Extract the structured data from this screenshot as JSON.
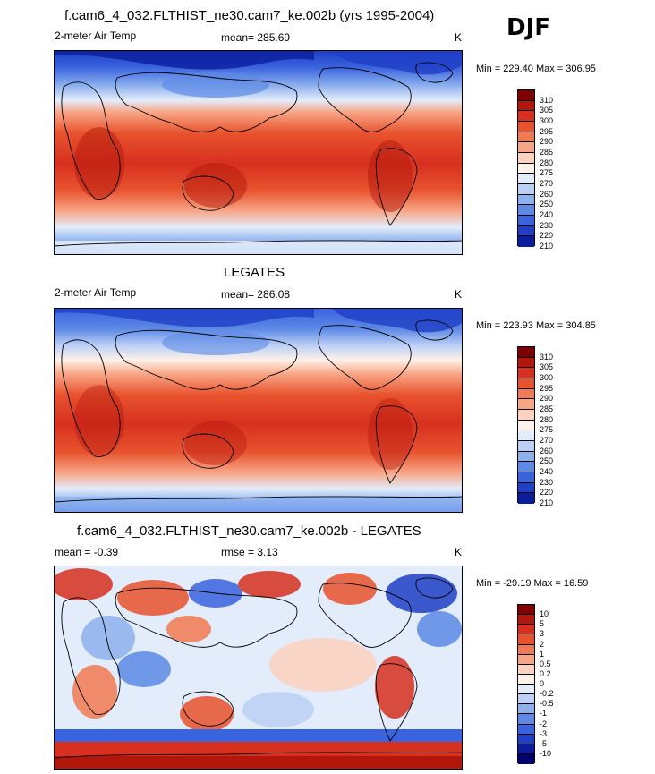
{
  "season": "DJF",
  "panels": [
    {
      "title": "f.cam6_4_032.FLTHIST_ne30.cam7_ke.002b (yrs 1995-2004)",
      "variable": "2-meter Air Temp",
      "stat": "mean= 285.69",
      "units": "K",
      "minmax": "Min = 229.40 Max = 306.95",
      "levels": [
        "310",
        "305",
        "300",
        "295",
        "290",
        "285",
        "280",
        "275",
        "270",
        "260",
        "250",
        "240",
        "230",
        "220",
        "210"
      ]
    },
    {
      "title": "LEGATES",
      "variable": "2-meter Air Temp",
      "stat": "mean= 286.08",
      "units": "K",
      "minmax": "Min = 223.93 Max = 304.85",
      "levels": [
        "310",
        "305",
        "300",
        "295",
        "290",
        "285",
        "280",
        "275",
        "270",
        "260",
        "250",
        "240",
        "230",
        "220",
        "210"
      ]
    },
    {
      "title": "f.cam6_4_032.FLTHIST_ne30.cam7_ke.002b - LEGATES",
      "variable": "mean =  -0.39",
      "stat": "rmse =   3.13",
      "units": "K",
      "minmax": "Min = -29.19 Max =  16.59",
      "levels": [
        "10",
        "5",
        "3",
        "2",
        "1",
        "0.5",
        "0.2",
        "0",
        "-0.2",
        "-0.5",
        "-1",
        "-2",
        "-3",
        "-5",
        "-10"
      ]
    }
  ],
  "palette": [
    "#7f0000",
    "#b3170c",
    "#d7301f",
    "#e8532e",
    "#f27a52",
    "#f8a585",
    "#fcd2bf",
    "#fdf2ea",
    "#e3ecfb",
    "#bcd0f5",
    "#8db1ee",
    "#5d8ae6",
    "#3a63de",
    "#1f3fc6",
    "#0a1e9c",
    "#00006e"
  ]
}
